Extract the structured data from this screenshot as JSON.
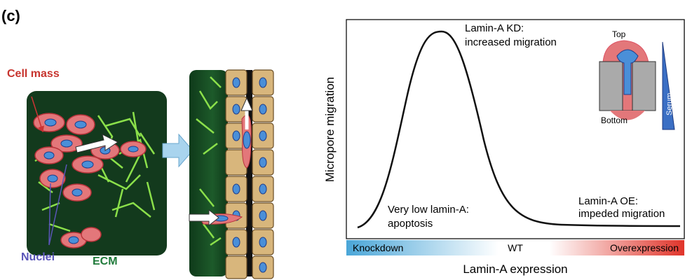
{
  "panel_label": "(c)",
  "left": {
    "cell_mass": "Cell mass",
    "nuclei": "Nuclei",
    "ecm": "ECM"
  },
  "right": {
    "y_label": "Micropore migration",
    "x_label": "Lamin-A expression",
    "annotations": {
      "kd_1": "Lamin-A KD:",
      "kd_2": "increased migration",
      "low_1": "Very low lamin-A:",
      "low_2": "apoptosis",
      "oe_1": "Lamin-A OE:",
      "oe_2": "impeded migration"
    },
    "gradient": {
      "left": "Knockdown",
      "middle": "WT",
      "right": "Overexpression"
    },
    "inset": {
      "top": "Top",
      "bottom": "Bottom",
      "serum": "Serum"
    }
  }
}
